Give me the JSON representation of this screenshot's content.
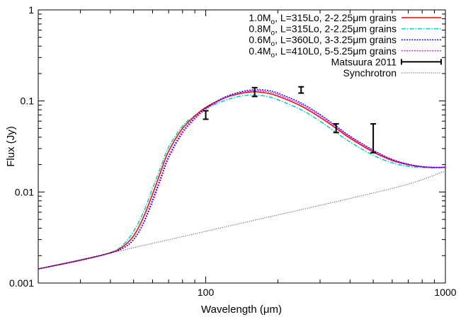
{
  "chart_data": {
    "type": "line",
    "title": "",
    "xlabel": "Wavelength (μm)",
    "ylabel": "Flux (Jy)",
    "xscale": "log",
    "yscale": "log",
    "xlim": [
      20,
      1000
    ],
    "ylim": [
      0.001,
      1
    ],
    "x_tick_labels": [
      "100",
      "1000"
    ],
    "y_tick_labels": [
      "0.001",
      "0.01",
      "0.1",
      "1"
    ],
    "grid": false,
    "legend_position": "top-right",
    "series": [
      {
        "name": "1.0M_o, L=315Lo, 2-2.25μm grains",
        "color": "#ff0000",
        "dash": "solid",
        "points": [
          [
            20,
            0.00143
          ],
          [
            30,
            0.00178
          ],
          [
            40,
            0.00215
          ],
          [
            45,
            0.0025
          ],
          [
            50,
            0.0033
          ],
          [
            55,
            0.0053
          ],
          [
            60,
            0.0095
          ],
          [
            65,
            0.017
          ],
          [
            70,
            0.028
          ],
          [
            80,
            0.05
          ],
          [
            90,
            0.068
          ],
          [
            100,
            0.085
          ],
          [
            120,
            0.108
          ],
          [
            140,
            0.121
          ],
          [
            160,
            0.126
          ],
          [
            180,
            0.122
          ],
          [
            200,
            0.113
          ],
          [
            250,
            0.088
          ],
          [
            300,
            0.066
          ],
          [
            350,
            0.05
          ],
          [
            400,
            0.039
          ],
          [
            500,
            0.0275
          ],
          [
            600,
            0.0222
          ],
          [
            700,
            0.0199
          ],
          [
            800,
            0.0189
          ],
          [
            900,
            0.0186
          ],
          [
            1000,
            0.0187
          ]
        ]
      },
      {
        "name": "0.8M_o, L=315Lo, 2-2.25μm grains",
        "color": "#00cccc",
        "dash": "dashdot",
        "points": [
          [
            20,
            0.00143
          ],
          [
            30,
            0.00178
          ],
          [
            40,
            0.00216
          ],
          [
            45,
            0.0026
          ],
          [
            50,
            0.0037
          ],
          [
            55,
            0.006
          ],
          [
            60,
            0.011
          ],
          [
            65,
            0.019
          ],
          [
            70,
            0.031
          ],
          [
            80,
            0.053
          ],
          [
            90,
            0.069
          ],
          [
            100,
            0.083
          ],
          [
            120,
            0.101
          ],
          [
            140,
            0.113
          ],
          [
            160,
            0.116
          ],
          [
            180,
            0.112
          ],
          [
            200,
            0.103
          ],
          [
            250,
            0.08
          ],
          [
            300,
            0.06
          ],
          [
            350,
            0.045
          ],
          [
            400,
            0.0355
          ],
          [
            500,
            0.0253
          ],
          [
            600,
            0.0209
          ],
          [
            700,
            0.0191
          ],
          [
            800,
            0.0186
          ],
          [
            900,
            0.0184
          ],
          [
            1000,
            0.0186
          ]
        ]
      },
      {
        "name": "0.6M_o, L=360L0, 3-3.25μm grains",
        "color": "#0000ee",
        "dash": "dotted",
        "points": [
          [
            20,
            0.00143
          ],
          [
            30,
            0.00178
          ],
          [
            40,
            0.00214
          ],
          [
            45,
            0.0024
          ],
          [
            50,
            0.003
          ],
          [
            55,
            0.0046
          ],
          [
            60,
            0.0082
          ],
          [
            65,
            0.0145
          ],
          [
            70,
            0.0245
          ],
          [
            80,
            0.046
          ],
          [
            90,
            0.065
          ],
          [
            100,
            0.083
          ],
          [
            120,
            0.11
          ],
          [
            140,
            0.126
          ],
          [
            160,
            0.133
          ],
          [
            180,
            0.131
          ],
          [
            200,
            0.122
          ],
          [
            250,
            0.095
          ],
          [
            300,
            0.071
          ],
          [
            350,
            0.053
          ],
          [
            400,
            0.041
          ],
          [
            500,
            0.0288
          ],
          [
            600,
            0.0228
          ],
          [
            700,
            0.0202
          ],
          [
            800,
            0.019
          ],
          [
            900,
            0.0186
          ],
          [
            1000,
            0.0187
          ]
        ]
      },
      {
        "name": "0.4M_o, L=410L0, 5-5.25μm grains",
        "color": "#ff00ff",
        "dash": "dotted",
        "points": [
          [
            20,
            0.00143
          ],
          [
            30,
            0.00178
          ],
          [
            40,
            0.00214
          ],
          [
            45,
            0.0024
          ],
          [
            50,
            0.003
          ],
          [
            55,
            0.0045
          ],
          [
            60,
            0.0078
          ],
          [
            65,
            0.0138
          ],
          [
            70,
            0.0235
          ],
          [
            80,
            0.044
          ],
          [
            90,
            0.063
          ],
          [
            100,
            0.081
          ],
          [
            120,
            0.108
          ],
          [
            140,
            0.124
          ],
          [
            160,
            0.13
          ],
          [
            180,
            0.127
          ],
          [
            200,
            0.118
          ],
          [
            250,
            0.092
          ],
          [
            300,
            0.069
          ],
          [
            350,
            0.052
          ],
          [
            400,
            0.0405
          ],
          [
            500,
            0.0283
          ],
          [
            600,
            0.0226
          ],
          [
            700,
            0.0201
          ],
          [
            800,
            0.019
          ],
          [
            900,
            0.0186
          ],
          [
            1000,
            0.0187
          ]
        ]
      },
      {
        "name": "Synchrotron",
        "color": "#555555",
        "dash": "fine",
        "points": [
          [
            20,
            0.00143
          ],
          [
            40,
            0.00214
          ],
          [
            100,
            0.0037
          ],
          [
            200,
            0.0056
          ],
          [
            400,
            0.0085
          ],
          [
            700,
            0.0122
          ],
          [
            1000,
            0.017
          ]
        ]
      }
    ],
    "errorbars": {
      "name": "Matsuura 2011",
      "color": "#000000",
      "points": [
        {
          "x": 100,
          "low": 0.063,
          "high": 0.078
        },
        {
          "x": 160,
          "low": 0.112,
          "high": 0.14
        },
        {
          "x": 250,
          "low": 0.122,
          "high": 0.143
        },
        {
          "x": 350,
          "low": 0.045,
          "high": 0.056
        },
        {
          "x": 500,
          "low": 0.027,
          "high": 0.056
        }
      ]
    }
  }
}
